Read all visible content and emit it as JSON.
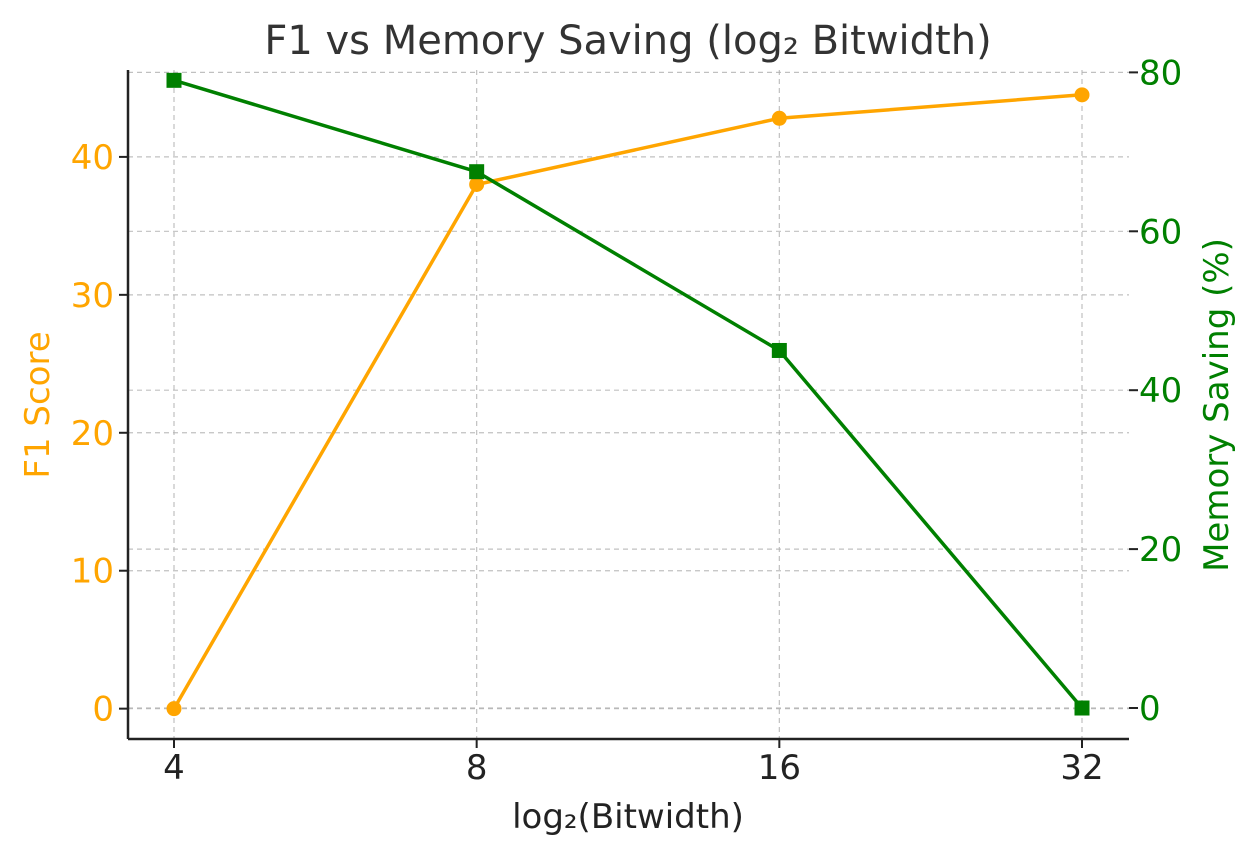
{
  "chart_data": {
    "type": "line",
    "title": "F1 vs Memory Saving (log₂ Bitwidth)",
    "xlabel": "log₂(Bitwidth)",
    "x": [
      "4",
      "8",
      "16",
      "32"
    ],
    "x_scale": "log2",
    "y_left": {
      "label": "F1 Score",
      "lim": [
        -2.2,
        46.3
      ],
      "ticks": [
        0,
        10,
        20,
        30,
        40
      ],
      "color": "#FFA500"
    },
    "y_right": {
      "label": "Memory Saving (%)",
      "lim": [
        -3.9,
        80.3
      ],
      "ticks": [
        0,
        20,
        40,
        60,
        80
      ],
      "color": "#008000"
    },
    "grid": true,
    "series": [
      {
        "axis": "left",
        "color": "#FFA500",
        "marker": "circle",
        "values": [
          0.0,
          38.0,
          42.8,
          44.5
        ]
      },
      {
        "axis": "right",
        "color": "#008000",
        "marker": "square",
        "values": [
          79.0,
          67.5,
          45.0,
          0.0
        ]
      }
    ]
  }
}
